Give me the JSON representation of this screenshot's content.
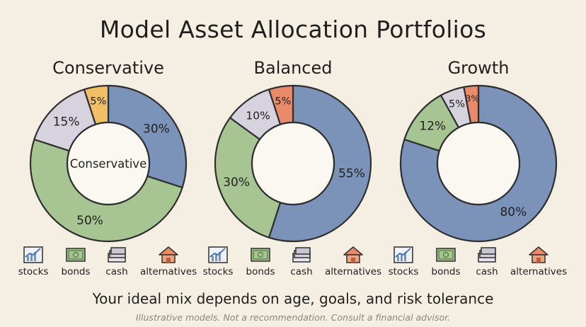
{
  "title": "Model Asset Allocation Portfolios",
  "colors": {
    "stocks": "#7b93b8",
    "bonds": "#a7c592",
    "cash": "#d6d2de",
    "alternatives_cons": "#f0bf66",
    "alternatives": "#e98b6b",
    "outline": "#2f2f2f"
  },
  "legend": {
    "items": [
      {
        "key": "stocks",
        "label": "stocks",
        "icon": "stock-chart-icon"
      },
      {
        "key": "bonds",
        "label": "bonds",
        "icon": "bond-certificate-icon"
      },
      {
        "key": "cash",
        "label": "cash",
        "icon": "cash-stack-icon"
      },
      {
        "key": "alternatives",
        "label": "alternatives",
        "icon": "house-icon"
      }
    ]
  },
  "chart_data": [
    {
      "type": "pie",
      "title": "Conservative",
      "center_label": "Conservative",
      "categories": [
        "stocks",
        "bonds",
        "cash",
        "alternatives"
      ],
      "values": [
        30,
        50,
        15,
        5
      ],
      "labels": [
        "30%",
        "50%",
        "15%",
        "5%"
      ],
      "alt_color": "#f0bf66"
    },
    {
      "type": "pie",
      "title": "Balanced",
      "center_label": "",
      "categories": [
        "stocks",
        "bonds",
        "cash",
        "alternatives"
      ],
      "values": [
        55,
        30,
        10,
        5
      ],
      "labels": [
        "55%",
        "30%",
        "10%",
        "5%"
      ],
      "alt_color": "#e98b6b"
    },
    {
      "type": "pie",
      "title": "Growth",
      "center_label": "",
      "categories": [
        "stocks",
        "bonds",
        "cash",
        "alternatives"
      ],
      "values": [
        80,
        12,
        5,
        3
      ],
      "labels": [
        "80%",
        "12%",
        "5%",
        "3%"
      ],
      "alt_color": "#e98b6b"
    }
  ],
  "footer": {
    "main": "Your ideal mix depends on age, goals, and risk tolerance",
    "note": "Illustrative models. Not a recommendation. Consult a financial advisor."
  }
}
